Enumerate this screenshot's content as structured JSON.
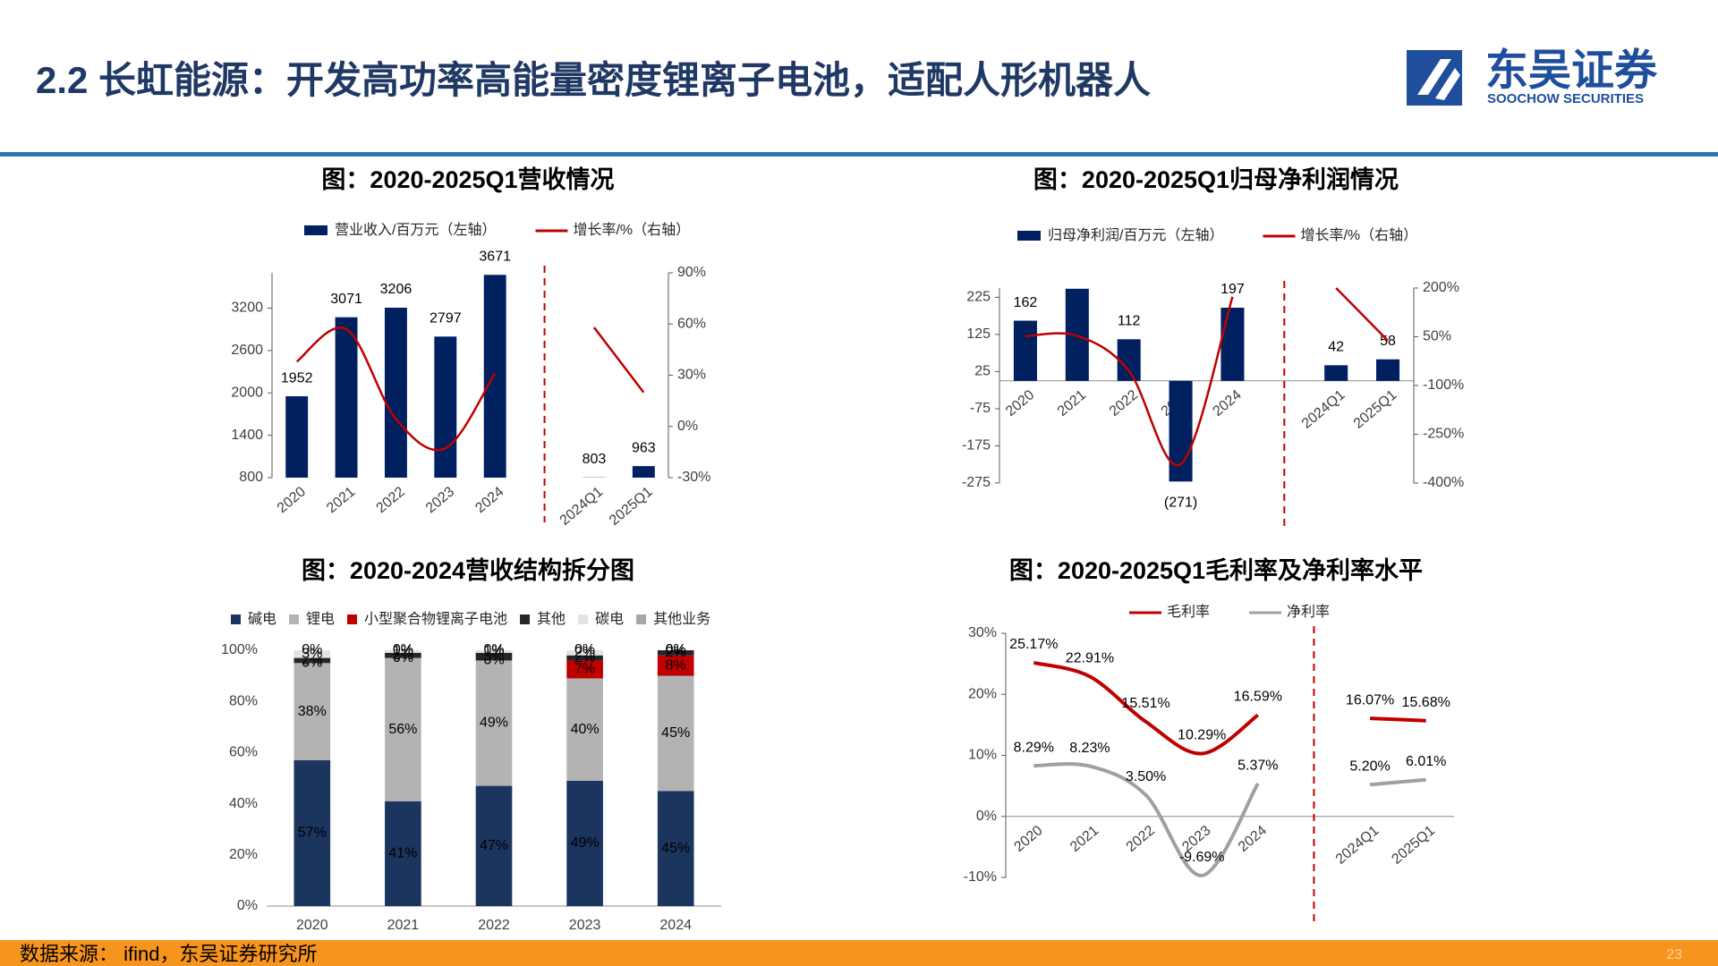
{
  "header": {
    "title": "2.2 长虹能源：开发高功率高能量密度锂离子电池，适配人形机器人",
    "logo_cn": "东吴证券",
    "logo_en": "SOOCHOW SECURITIES"
  },
  "footer": {
    "source": "数据来源： ifind，东吴证券研究所",
    "page": "23"
  },
  "chart_data": [
    {
      "type": "bar",
      "title": "图：2020-2025Q1营收情况",
      "categories": [
        "2020",
        "2021",
        "2022",
        "2023",
        "2024",
        null,
        "2024Q1",
        "2025Q1"
      ],
      "series": [
        {
          "name": "营业收入/百万元（左轴）",
          "color": "#002060",
          "values": [
            1952,
            3071,
            3206,
            2797,
            3671,
            null,
            803,
            963
          ]
        },
        {
          "name": "增长率/%（右轴）",
          "color": "#c00000",
          "type": "line",
          "axis": "y2",
          "values": [
            38,
            57,
            4.4,
            -12.8,
            31.2,
            null,
            58,
            19.9
          ]
        }
      ],
      "ylim": [
        800,
        3700
      ],
      "yticks": [
        800,
        1400,
        2000,
        2600,
        3200
      ],
      "y2lim": [
        -30,
        90
      ],
      "y2ticks": [
        {
          "value": -30,
          "label": "-30%"
        },
        {
          "value": 0,
          "label": "0%"
        },
        {
          "value": 30,
          "label": "30%"
        },
        {
          "value": 60,
          "label": "60%"
        },
        {
          "value": 90,
          "label": "90%"
        }
      ]
    },
    {
      "type": "bar",
      "title": "图：2020-2025Q1归母净利润情况",
      "categories": [
        "2020",
        "2021",
        "2022",
        "2023",
        "2024",
        null,
        "2024Q1",
        "2025Q1"
      ],
      "series": [
        {
          "name": "归母净利润/百万元（左轴）",
          "color": "#002060",
          "values": [
            162,
            248,
            112,
            -271,
            197,
            null,
            42,
            58
          ],
          "value_labels": [
            "162",
            null,
            "112",
            "(271)",
            "197",
            null,
            "42",
            "58"
          ]
        },
        {
          "name": "增长率/%（右轴）",
          "color": "#c00000",
          "type": "line",
          "axis": "y2",
          "values": [
            52,
            53,
            -55,
            -342,
            173,
            null,
            200,
            38
          ]
        }
      ],
      "ylim": [
        -275,
        250
      ],
      "yticks": [
        -275,
        -175,
        -75,
        25,
        125,
        225
      ],
      "y2lim": [
        -400,
        200
      ],
      "y2ticks": [
        {
          "value": -400,
          "label": "-400%"
        },
        {
          "value": -250,
          "label": "-250%"
        },
        {
          "value": -100,
          "label": "-100%"
        },
        {
          "value": 50,
          "label": "50%"
        },
        {
          "value": 200,
          "label": "200%"
        }
      ]
    },
    {
      "type": "stacked_bar",
      "title": "图：2020-2024营收结构拆分图",
      "categories": [
        "2020",
        "2021",
        "2022",
        "2023",
        "2024"
      ],
      "series": [
        {
          "name": "碱电",
          "color": "#1b355e",
          "values": [
            57,
            41,
            47,
            49,
            45
          ],
          "value_labels": [
            "57%",
            "41%",
            "47%",
            "49%",
            "45%"
          ]
        },
        {
          "name": "锂电",
          "color": "#b3b3b3",
          "values": [
            38,
            56,
            49,
            40,
            45
          ],
          "value_labels": [
            "38%",
            "56%",
            "49%",
            "40%",
            "45%"
          ]
        },
        {
          "name": "小型聚合物锂离子电池",
          "color": "#c00000",
          "values": [
            0,
            0,
            0,
            7,
            8
          ],
          "value_labels": [
            "0%",
            "0%",
            "0%",
            "7%",
            "8%"
          ]
        },
        {
          "name": "其他",
          "color": "#262626",
          "values": [
            2,
            2,
            3,
            2,
            2
          ],
          "value_labels": [
            "2%",
            "2%",
            "3%",
            "2%",
            "2%"
          ]
        },
        {
          "name": "碳电",
          "color": "#e3e3e3",
          "values": [
            3,
            1,
            1,
            2,
            0
          ],
          "value_labels": [
            "3%",
            "1%",
            "1%",
            "2%",
            "0%"
          ]
        },
        {
          "name": "其他业务",
          "color": "#a6a6a6",
          "values": [
            0,
            0,
            0,
            0,
            0
          ],
          "value_labels": [
            "0%",
            "0%",
            "0%",
            "0%",
            "0%"
          ]
        }
      ],
      "ylim": [
        0,
        100
      ],
      "yticks": [
        {
          "value": 0,
          "label": "0%"
        },
        {
          "value": 20,
          "label": "20%"
        },
        {
          "value": 40,
          "label": "40%"
        },
        {
          "value": 60,
          "label": "60%"
        },
        {
          "value": 80,
          "label": "80%"
        },
        {
          "value": 100,
          "label": "100%"
        }
      ]
    },
    {
      "type": "line",
      "title": "图：2020-2025Q1毛利率及净利率水平",
      "categories": [
        "2020",
        "2021",
        "2022",
        "2023",
        "2024",
        null,
        "2024Q1",
        "2025Q1"
      ],
      "series": [
        {
          "name": "毛利率",
          "color": "#c00000",
          "values": [
            25.17,
            22.91,
            15.51,
            10.29,
            16.59,
            null,
            16.07,
            15.68
          ],
          "value_labels": [
            "25.17%",
            "22.91%",
            "15.51%",
            "10.29%",
            "16.59%",
            null,
            "16.07%",
            "15.68%"
          ]
        },
        {
          "name": "净利率",
          "color": "#a0a0a0",
          "values": [
            8.29,
            8.23,
            3.5,
            -9.69,
            5.37,
            null,
            5.2,
            6.01
          ],
          "value_labels": [
            "8.29%",
            "8.23%",
            "3.50%",
            "-9.69%",
            "5.37%",
            null,
            "5.20%",
            "6.01%"
          ]
        }
      ],
      "ylim": [
        -10,
        30
      ],
      "yticks": [
        {
          "value": -10,
          "label": "-10%"
        },
        {
          "value": 0,
          "label": "0%"
        },
        {
          "value": 10,
          "label": "10%"
        },
        {
          "value": 20,
          "label": "20%"
        },
        {
          "value": 30,
          "label": "30%"
        }
      ]
    }
  ]
}
